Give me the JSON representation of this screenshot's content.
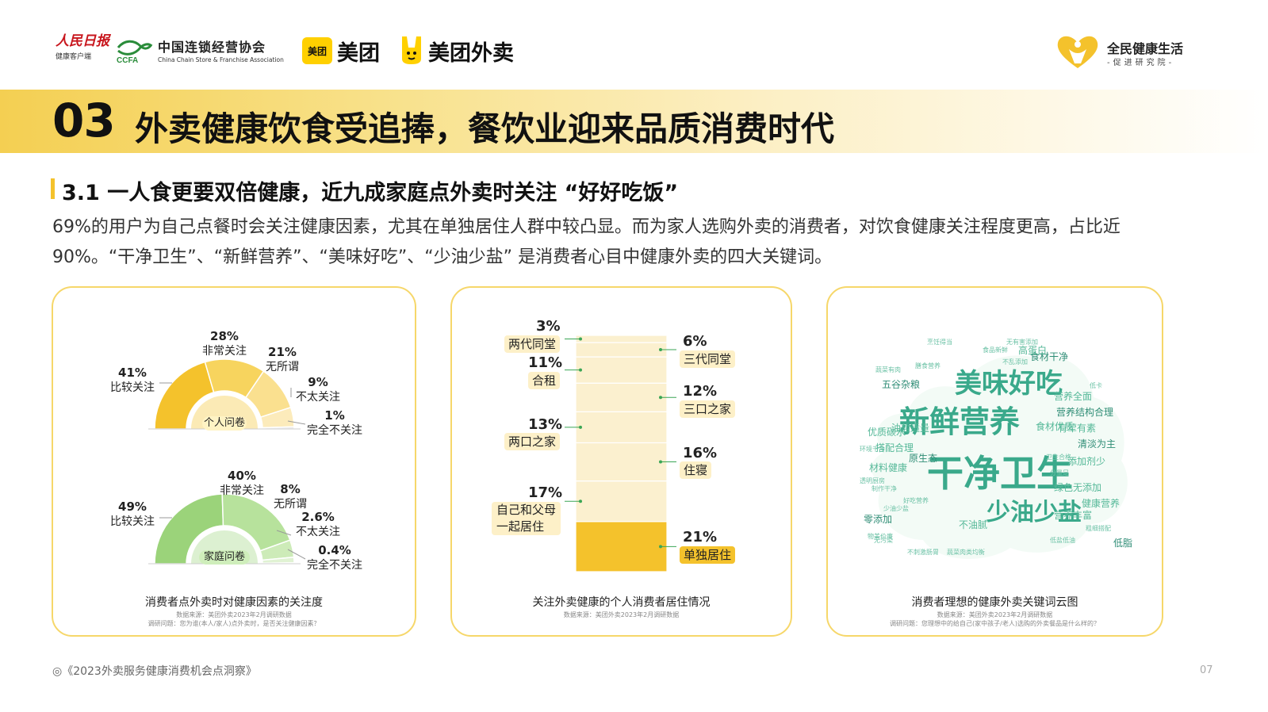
{
  "header": {
    "logos": {
      "people_daily": "人民日报",
      "people_daily_sub": "健康客户端",
      "ccfa_cn": "中国连锁经营协会",
      "ccfa_mark": "CCFA",
      "ccfa_en": "China Chain Store & Franchise Association",
      "meituan_box": "美团",
      "meituan": "美团",
      "meituan_waimai": "美团外卖",
      "qm_title": "全民健康生活",
      "qm_sub": "-促进研究院-"
    }
  },
  "page": {
    "section_number": "03",
    "section_title": "外卖健康饮食受追捧，餐饮业迎来品质消费时代",
    "subsection_title": "3.1 一人食更要双倍健康，近九成家庭点外卖时关注 “好好吃饭”",
    "paragraph": "69%的用户为自己点餐时会关注健康因素，尤其在单独居住人群中较凸显。而为家人选购外卖的消费者，对饮食健康关注程度更高，占比近90%。“干净卫生”、“新鲜营养”、“美味好吃”、“少油少盐” 是消费者心目中健康外卖的四大关键词。"
  },
  "colors": {
    "accent": "#f4c22c",
    "green": "#9bd37a",
    "yellow_light": "#fdf0c8"
  },
  "panel1": {
    "caption": "消费者点外卖时对健康因素的关注度",
    "source1": "数据来源：美团外卖2023年2月调研数据",
    "source2": "调研问题：您为谁(本人/家人)点外卖时，是否关注健康因素？"
  },
  "panel2": {
    "caption": "关注外卖健康的个人消费者居住情况",
    "source": "数据来源：美团外卖2023年2月调研数据"
  },
  "panel3": {
    "caption": "消费者理想的健康外卖关键词云图",
    "source1": "数据来源：美团外卖2023年2月调研数据",
    "source2": "调研问题：您理想中的给自己(家中孩子/老人)选购的外卖餐品是什么样的？",
    "words_big": [
      "干净卫生",
      "新鲜营养",
      "美味好吃",
      "少油少盐"
    ],
    "words_mid": [
      "食材干净",
      "营养丰富",
      "不油腻",
      "原生态",
      "材料健康",
      "营养全面",
      "清淡为主",
      "食材优质",
      "添加剂少",
      "营养结构合理",
      "有荤有素",
      "绿色无添加",
      "五谷杂粮",
      "优质碳水",
      "油盐适量",
      "零添加",
      "搭配合理",
      "健康营养",
      "低脂",
      "高蛋白"
    ],
    "words_small": [
      "无污染",
      "不刺激肠胃",
      "蔬菜肉类均衡",
      "低盐低油",
      "少油少盐",
      "分量足",
      "粗细搭配",
      "无有害添加",
      "食品新鲜",
      "透明厨房",
      "膳食营养",
      "低卡",
      "烹饪得当",
      "蔬菜有肉",
      "不乱添加",
      "卫生合格",
      "物美价廉",
      "制作干净",
      "好吃营养",
      "环境干净"
    ]
  },
  "chart_data": [
    {
      "type": "pie",
      "title": "个人问卷",
      "categories": [
        "比较关注",
        "非常关注",
        "无所谓",
        "不太关注",
        "完全不关注"
      ],
      "values": [
        41,
        28,
        21,
        9,
        1
      ],
      "labels": [
        "41%",
        "28%",
        "21%",
        "9%",
        "1%"
      ]
    },
    {
      "type": "pie",
      "title": "家庭问卷",
      "categories": [
        "比较关注",
        "非常关注",
        "无所谓",
        "不太关注",
        "完全不关注"
      ],
      "values": [
        49,
        40,
        8,
        2.6,
        0.4
      ],
      "labels": [
        "49%",
        "40%",
        "8%",
        "2.6%",
        "0.4%"
      ]
    },
    {
      "type": "bar",
      "stacked": true,
      "categories": [
        "单独居住",
        "自己和父母一起居住",
        "住寝",
        "两口之家",
        "三口之家",
        "合租",
        "三代同堂",
        "两代同堂"
      ],
      "values": [
        21,
        17,
        16,
        13,
        12,
        11,
        6,
        3
      ],
      "labels": [
        "21%",
        "17%",
        "16%",
        "13%",
        "12%",
        "11%",
        "6%",
        "3%"
      ],
      "display_names": [
        "单独居住",
        "自己和父母\n一起居住",
        "住寝",
        "两口之家",
        "三口之家",
        "合租",
        "三代同堂",
        "两代同堂"
      ]
    }
  ],
  "footer": {
    "report": "◎《2023外卖服务健康消费机会点洞察》",
    "page_number": "07"
  }
}
